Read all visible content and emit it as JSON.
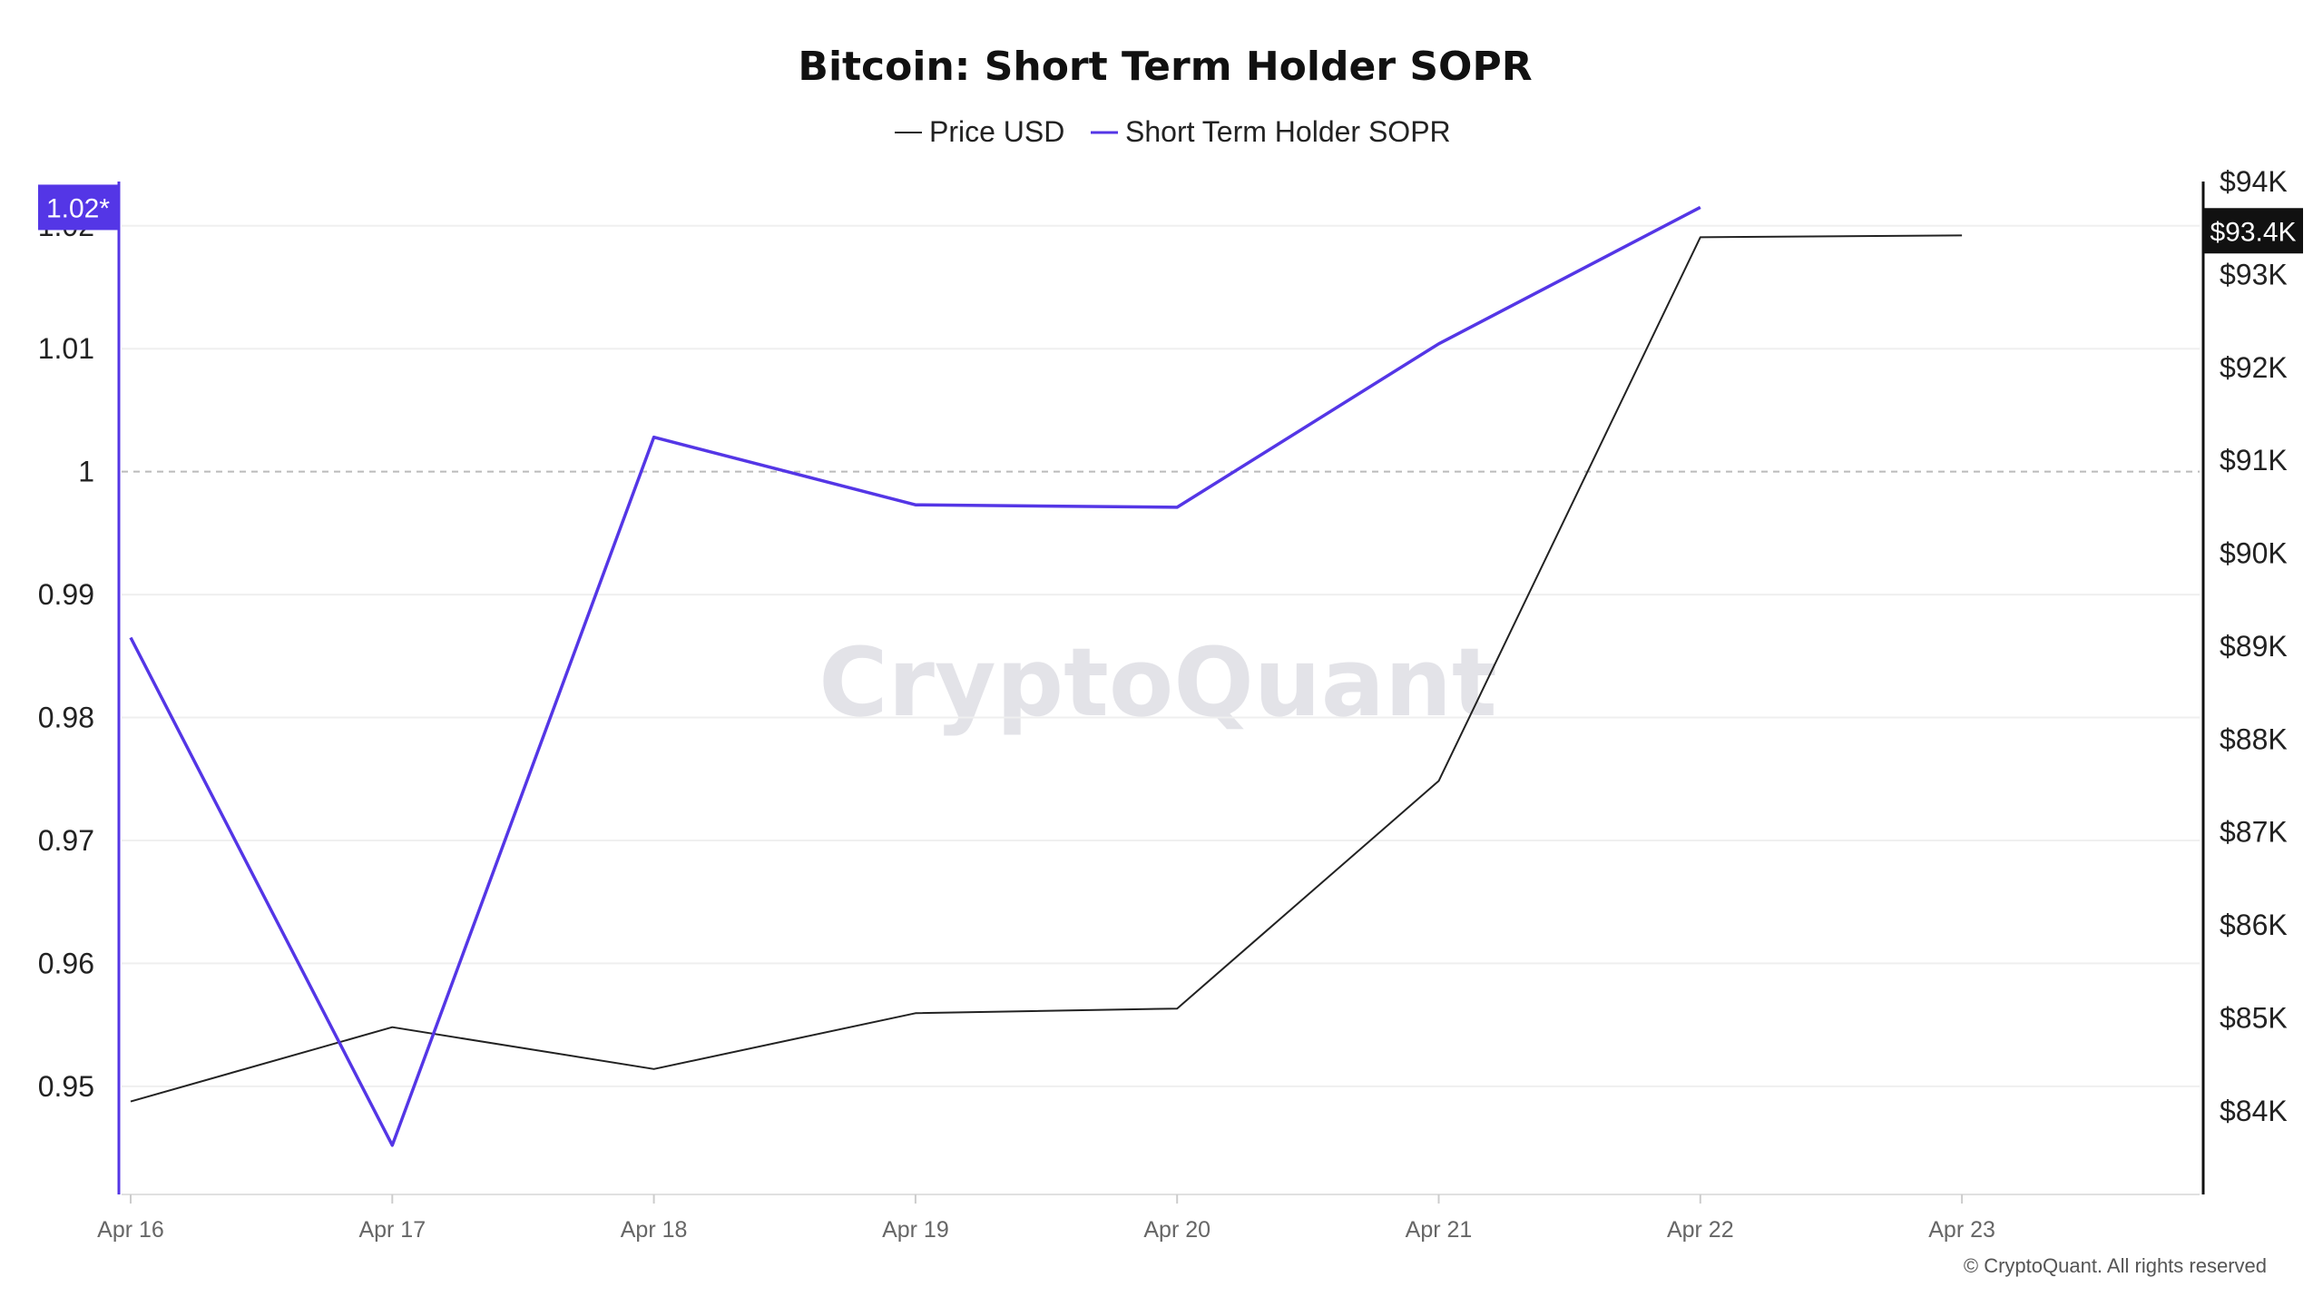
{
  "chart_data": {
    "type": "line",
    "title": "Bitcoin: Short Term Holder SOPR",
    "categories": [
      "Apr 16",
      "Apr 17",
      "Apr 18",
      "Apr 19",
      "Apr 20",
      "Apr 21",
      "Apr 22",
      "Apr 23"
    ],
    "series": [
      {
        "name": "Price USD",
        "axis": "right",
        "color": "#222222",
        "values": [
          84100,
          84900,
          84450,
          85050,
          85100,
          87550,
          93400,
          93420
        ]
      },
      {
        "name": "Short Term Holder SOPR",
        "axis": "left",
        "color": "#5436e6",
        "values": [
          0.9865,
          0.9452,
          1.0028,
          0.9973,
          0.9971,
          1.0104,
          1.0215,
          null
        ]
      }
    ],
    "left_axis": {
      "ticks": [
        "0.95",
        "0.96",
        "0.97",
        "0.98",
        "0.99",
        "1",
        "1.01",
        "1.02"
      ],
      "tick_values": [
        0.95,
        0.96,
        0.97,
        0.98,
        0.99,
        1.0,
        1.01,
        1.02
      ],
      "range": [
        0.9412,
        1.0236
      ],
      "reference_line": 1.0,
      "badge": "1.02*",
      "badge_value": 1.0215,
      "color": "#5436e6"
    },
    "right_axis": {
      "ticks": [
        "$84K",
        "$85K",
        "$86K",
        "$87K",
        "$88K",
        "$89K",
        "$90K",
        "$91K",
        "$92K",
        "$93K",
        "$94K"
      ],
      "tick_values": [
        84000,
        85000,
        86000,
        87000,
        88000,
        89000,
        90000,
        91000,
        92000,
        93000,
        94000
      ],
      "range": [
        83100,
        94000
      ],
      "badge": "$93.4K",
      "badge_value": 93470,
      "color": "#111111"
    },
    "grid": true,
    "legend_position": "top-center"
  },
  "watermark": "CryptoQuant",
  "copyright": "© CryptoQuant. All rights reserved"
}
